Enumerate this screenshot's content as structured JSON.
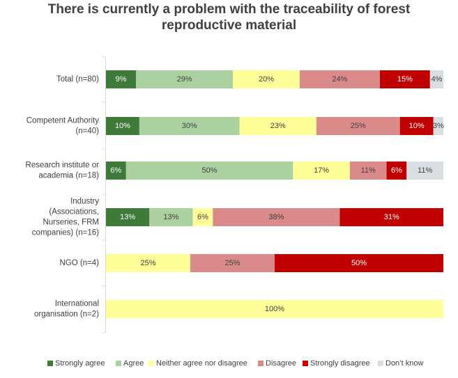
{
  "chart_data": {
    "type": "bar",
    "stacked": true,
    "orientation": "horizontal",
    "percent_scale": true,
    "title_lines": [
      "There is currently a problem with the traceability of forest",
      "reproductive material"
    ],
    "categories": [
      [
        "Total (n=80)"
      ],
      [
        "Competent Authority",
        "(n=40)"
      ],
      [
        "Research institute or",
        "academia (n=18)"
      ],
      [
        "Industry",
        "(Associations,",
        "Nurseries, FRM",
        "companies) (n=16)"
      ],
      [
        "NGO (n=4)"
      ],
      [
        "International",
        "organisation (n=2)"
      ]
    ],
    "series": [
      {
        "name": "Strongly agree",
        "color": "#3e7b3a",
        "text_color": "#ffffff",
        "values": [
          9,
          10,
          6,
          13,
          0,
          0
        ],
        "labels": [
          "9%",
          "10%",
          "6%",
          "13%",
          "",
          ""
        ]
      },
      {
        "name": "Agree",
        "color": "#acd1a0",
        "text_color": "#404040",
        "values": [
          29,
          30,
          50,
          13,
          0,
          0
        ],
        "labels": [
          "29%",
          "30%",
          "50%",
          "13%",
          "",
          ""
        ]
      },
      {
        "name": "Neither agree nor disagree",
        "color": "#ffff99",
        "text_color": "#404040",
        "values": [
          20,
          23,
          17,
          6,
          25,
          100
        ],
        "labels": [
          "20%",
          "23%",
          "17%",
          "6%",
          "25%",
          "100%"
        ]
      },
      {
        "name": "Disagree",
        "color": "#db8a8a",
        "text_color": "#404040",
        "values": [
          24,
          25,
          11,
          38,
          25,
          0
        ],
        "labels": [
          "24%",
          "25%",
          "11%",
          "38%",
          "25%",
          ""
        ]
      },
      {
        "name": "Strongly disagree",
        "color": "#c00000",
        "text_color": "#ffffff",
        "values": [
          15,
          10,
          6,
          31,
          50,
          0
        ],
        "labels": [
          "15%",
          "10%",
          "6%",
          "31%",
          "50%",
          ""
        ]
      },
      {
        "name": "Don’t know",
        "color": "#d9dee3",
        "text_color": "#404040",
        "values": [
          4,
          3,
          11,
          0,
          0,
          0
        ],
        "labels": [
          "4%",
          "3%",
          "11%",
          "",
          "",
          ""
        ]
      }
    ],
    "legend_position": "bottom",
    "grid": false,
    "axis": "left category axis line, no value axis labels"
  }
}
